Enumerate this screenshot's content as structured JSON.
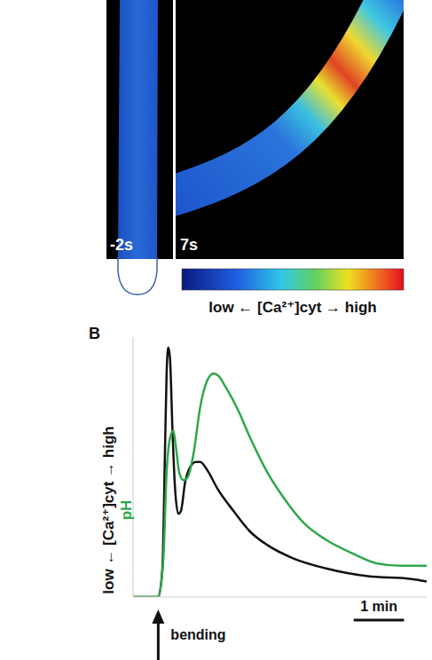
{
  "image_panel": {
    "frames": [
      "-2s",
      "7s"
    ],
    "colorbar": {
      "low": "low ←",
      "label": "[Ca²⁺]cyt",
      "high": "→ high"
    }
  },
  "chart_data": {
    "type": "line",
    "panel_label": "B",
    "ylabel": {
      "low": "low ←",
      "high": "→ high"
    },
    "tick_labels": false,
    "xlim": [
      -30,
      320
    ],
    "ylim": [
      0,
      100
    ],
    "series": [
      {
        "name": "[Ca²⁺]cyt",
        "color": "#111111",
        "x": [
          -30,
          0,
          5,
          8,
          10,
          12,
          14,
          17,
          20,
          24,
          27,
          32,
          38,
          45,
          50,
          60,
          70,
          90,
          110,
          130,
          160,
          200,
          250,
          300,
          320
        ],
        "values": [
          0,
          0,
          11,
          55,
          86,
          96,
          92,
          64,
          42,
          32,
          33,
          44,
          50,
          52,
          52,
          48,
          42,
          33,
          25,
          20,
          15,
          11,
          8,
          7,
          6
        ]
      },
      {
        "name": "pH",
        "color": "#2ea84a",
        "x": [
          -30,
          0,
          6,
          10,
          14,
          18,
          21,
          25,
          30,
          35,
          42,
          50,
          58,
          66,
          72,
          80,
          95,
          110,
          130,
          150,
          175,
          200,
          230,
          260,
          290,
          320
        ],
        "values": [
          0,
          0,
          14,
          48,
          61,
          64,
          58,
          48,
          45,
          46,
          55,
          73,
          83,
          86,
          85,
          81,
          72,
          61,
          48,
          38,
          28,
          22,
          17,
          13,
          12,
          12
        ]
      }
    ],
    "scale_bar": {
      "x": 233,
      "value": 60,
      "label": "1 min"
    },
    "annotations": [
      {
        "x": 0,
        "text": "bending"
      }
    ]
  }
}
